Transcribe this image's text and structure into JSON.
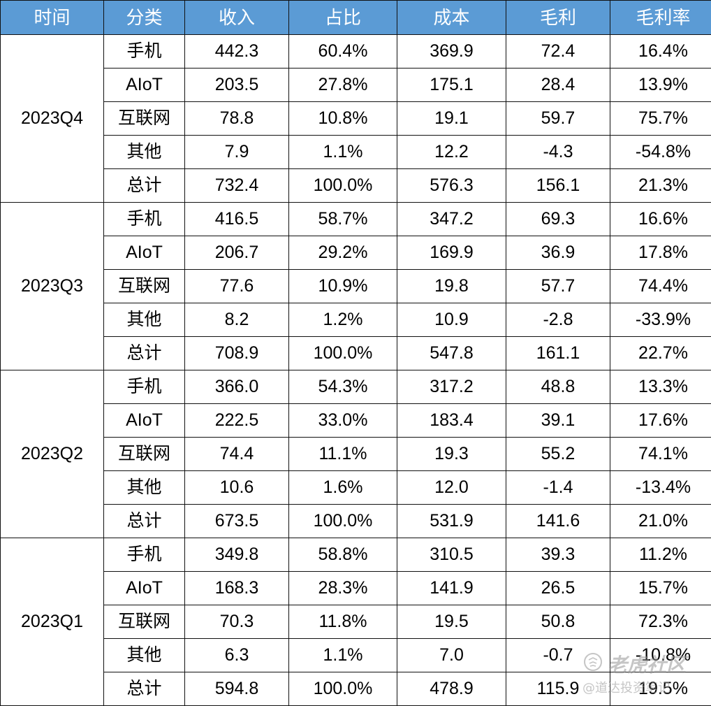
{
  "headers": [
    "时间",
    "分类",
    "收入",
    "占比",
    "成本",
    "毛利",
    "毛利率"
  ],
  "groups": [
    {
      "period": "2023Q4",
      "rows": [
        [
          "手机",
          "442.3",
          "60.4%",
          "369.9",
          "72.4",
          "16.4%"
        ],
        [
          "AIoT",
          "203.5",
          "27.8%",
          "175.1",
          "28.4",
          "13.9%"
        ],
        [
          "互联网",
          "78.8",
          "10.8%",
          "19.1",
          "59.7",
          "75.7%"
        ],
        [
          "其他",
          "7.9",
          "1.1%",
          "12.2",
          "-4.3",
          "-54.8%"
        ],
        [
          "总计",
          "732.4",
          "100.0%",
          "576.3",
          "156.1",
          "21.3%"
        ]
      ]
    },
    {
      "period": "2023Q3",
      "rows": [
        [
          "手机",
          "416.5",
          "58.7%",
          "347.2",
          "69.3",
          "16.6%"
        ],
        [
          "AIoT",
          "206.7",
          "29.2%",
          "169.9",
          "36.9",
          "17.8%"
        ],
        [
          "互联网",
          "77.6",
          "10.9%",
          "19.8",
          "57.7",
          "74.4%"
        ],
        [
          "其他",
          "8.2",
          "1.2%",
          "10.9",
          "-2.8",
          "-33.9%"
        ],
        [
          "总计",
          "708.9",
          "100.0%",
          "547.8",
          "161.1",
          "22.7%"
        ]
      ]
    },
    {
      "period": "2023Q2",
      "rows": [
        [
          "手机",
          "366.0",
          "54.3%",
          "317.2",
          "48.8",
          "13.3%"
        ],
        [
          "AIoT",
          "222.5",
          "33.0%",
          "183.4",
          "39.1",
          "17.6%"
        ],
        [
          "互联网",
          "74.4",
          "11.1%",
          "19.3",
          "55.2",
          "74.1%"
        ],
        [
          "其他",
          "10.6",
          "1.6%",
          "12.0",
          "-1.4",
          "-13.4%"
        ],
        [
          "总计",
          "673.5",
          "100.0%",
          "531.9",
          "141.6",
          "21.0%"
        ]
      ]
    },
    {
      "period": "2023Q1",
      "rows": [
        [
          "手机",
          "349.8",
          "58.8%",
          "310.5",
          "39.3",
          "11.2%"
        ],
        [
          "AIoT",
          "168.3",
          "28.3%",
          "141.9",
          "26.5",
          "15.7%"
        ],
        [
          "互联网",
          "70.3",
          "11.8%",
          "19.5",
          "50.8",
          "72.3%"
        ],
        [
          "其他",
          "6.3",
          "1.1%",
          "7.0",
          "-0.7",
          "-10.8%"
        ],
        [
          "总计",
          "594.8",
          "100.0%",
          "478.9",
          "115.9",
          "19.5%"
        ]
      ]
    }
  ],
  "watermark": {
    "name": "老虎社区",
    "handle": "@道达投资笔记",
    "icon": "tiger-logo-icon"
  },
  "colors": {
    "header_bg": "#5b9bd5",
    "header_text": "#ffffff",
    "border": "#111111"
  }
}
